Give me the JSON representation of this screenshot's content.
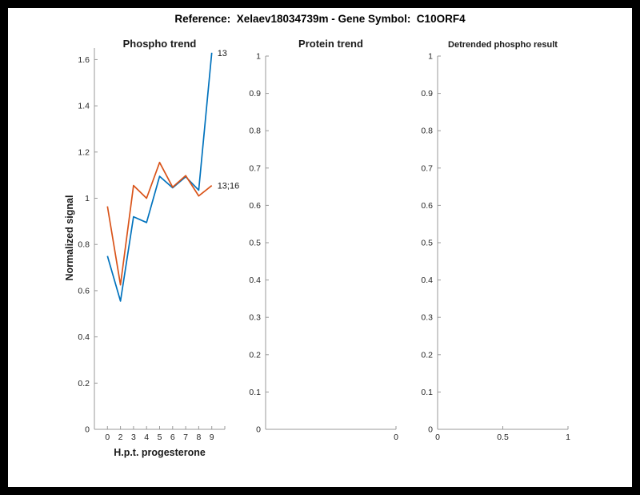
{
  "frame": {
    "title": "Reference:  Xelaev18034739m - Gene Symbol:  C10ORF4"
  },
  "colors": {
    "series_blue": "#0072BD",
    "series_orange": "#D95319",
    "axis_line": "#999999",
    "tick_text": "#262626"
  },
  "chart_data": [
    {
      "type": "line",
      "title": "Phospho trend",
      "xlabel": "H.p.t. progesterone",
      "ylabel": "Normalized signal",
      "x_categories": [
        "0",
        "2",
        "3",
        "4",
        "5",
        "6",
        "7",
        "8",
        "9"
      ],
      "ylim": [
        0,
        1.65
      ],
      "grid": false,
      "yticks": [
        0,
        0.2,
        0.4,
        0.6,
        0.8,
        1,
        1.2,
        1.4,
        1.6
      ],
      "ytick_labels": [
        "0",
        "0.2",
        "0.4",
        "0.6",
        "0.8",
        "1",
        "1.2",
        "1.4",
        "1.6"
      ],
      "extra_edge_tick": true,
      "series": [
        {
          "name": "13",
          "color": "#0072BD",
          "values": [
            0.75,
            0.555,
            0.92,
            0.895,
            1.095,
            1.045,
            1.093,
            1.035,
            1.63
          ]
        },
        {
          "name": "13;16",
          "color": "#D95319",
          "values": [
            0.965,
            0.625,
            1.055,
            1.0,
            1.155,
            1.048,
            1.098,
            1.01,
            1.055
          ]
        }
      ],
      "end_label_position": "right-of-last-point"
    },
    {
      "type": "line",
      "title": "Protein trend",
      "xlabel": "",
      "ylabel": "",
      "ylim": [
        0,
        1
      ],
      "grid": false,
      "yticks": [
        0,
        0.1,
        0.2,
        0.3,
        0.4,
        0.5,
        0.6,
        0.7,
        0.8,
        0.9,
        1
      ],
      "ytick_labels": [
        "0",
        "0.1",
        "0.2",
        "0.3",
        "0.4",
        "0.5",
        "0.6",
        "0.7",
        "0.8",
        "0.9",
        "1"
      ],
      "xticks": [
        {
          "frac": 1,
          "label": "0"
        }
      ],
      "series": []
    },
    {
      "type": "line",
      "title": "Detrended phospho result",
      "xlabel": "",
      "ylabel": "",
      "ylim": [
        0,
        1
      ],
      "grid": false,
      "yticks": [
        0,
        0.1,
        0.2,
        0.3,
        0.4,
        0.5,
        0.6,
        0.7,
        0.8,
        0.9,
        1
      ],
      "ytick_labels": [
        "0",
        "0.1",
        "0.2",
        "0.3",
        "0.4",
        "0.5",
        "0.6",
        "0.7",
        "0.8",
        "0.9",
        "1"
      ],
      "xticks": [
        {
          "frac": 0,
          "label": "0"
        },
        {
          "frac": 0.5,
          "label": "0.5"
        },
        {
          "frac": 1,
          "label": "1"
        }
      ],
      "series": []
    }
  ]
}
